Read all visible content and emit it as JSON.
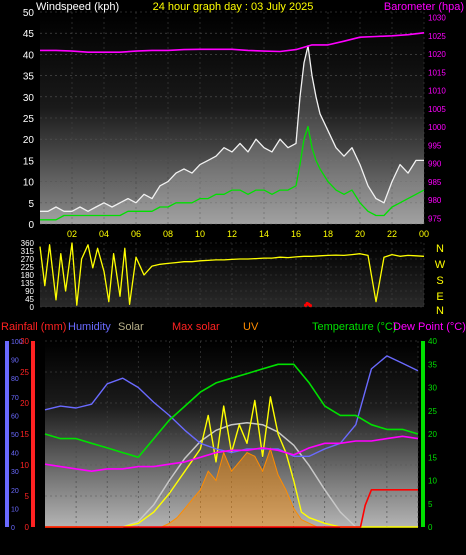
{
  "top": {
    "title_left": "Windspeed (kph)",
    "title_center": "24 hour graph day : 03 July 2025",
    "title_right": "Barometer (hpa)"
  },
  "middle": {
    "compass": [
      "N",
      "W",
      "S",
      "E",
      "N"
    ]
  },
  "bottom": {
    "legend": {
      "rainfall": "Rainfall (mm)",
      "humidity": "Humidity",
      "solar": "Solar",
      "max_solar": "Max solar",
      "uv": "UV",
      "temperature": "Temperature (°C)",
      "dew_point": "Dew Point (°C)"
    }
  },
  "colors": {
    "wind_gust": "#f2f2f2",
    "wind_avg": "#00e000",
    "barometer": "#ff00ff",
    "direction": "#ffff00",
    "rain": "#ff0000",
    "humidity": "#6a6aff",
    "solar": "#ffff00",
    "max_solar": "#c8c8c8",
    "uv": "#ff8c00",
    "temperature": "#00e000",
    "dew_point": "#ff00ff",
    "rain_axis": "#ff2222",
    "humidity_axis": "#6a6aff",
    "temperature_axis": "#00e000"
  },
  "chart_data": [
    {
      "type": "line",
      "name": "wind-and-barometer",
      "x_ticks": [
        "02",
        "04",
        "06",
        "08",
        "10",
        "12",
        "14",
        "16",
        "18",
        "20",
        "22",
        "00"
      ],
      "x_hours": [
        2,
        4,
        6,
        8,
        10,
        12,
        14,
        16,
        18,
        20,
        22,
        24
      ],
      "xlim": [
        0,
        24
      ],
      "y_left": {
        "label": "Windspeed (kph)",
        "ylim": [
          0,
          50
        ],
        "ticks": [
          0,
          5,
          10,
          15,
          20,
          25,
          30,
          35,
          40,
          45,
          50
        ]
      },
      "y_right": {
        "label": "Barometer (hpa)",
        "ylim": [
          973.5,
          1031.5
        ],
        "ticks": [
          975,
          980,
          985,
          990,
          995,
          1000,
          1005,
          1010,
          1015,
          1020,
          1025,
          1030
        ]
      },
      "series": [
        {
          "name": "Windspeed gust",
          "axis": "left",
          "x": [
            0,
            0.5,
            1,
            1.5,
            2,
            2.5,
            3,
            3.5,
            4,
            4.5,
            5,
            5.5,
            6,
            6.5,
            7,
            7.5,
            8,
            8.5,
            9,
            9.5,
            10,
            10.5,
            11,
            11.5,
            12,
            12.5,
            13,
            13.5,
            14,
            14.5,
            15,
            15.5,
            16,
            16.25,
            16.5,
            16.75,
            17,
            17.25,
            17.5,
            18,
            18.5,
            19,
            19.5,
            20,
            20.5,
            21,
            21.5,
            22,
            22.5,
            23,
            23.5,
            24
          ],
          "y": [
            3,
            3,
            4,
            3,
            3,
            4,
            3,
            4,
            5,
            4,
            5,
            6,
            5,
            7,
            6,
            9,
            10,
            12,
            13,
            12,
            14,
            15,
            16,
            18,
            17,
            19,
            17,
            20,
            18,
            17,
            20,
            18,
            19,
            30,
            38,
            42,
            35,
            30,
            26,
            22,
            18,
            16,
            18,
            14,
            9,
            6,
            5,
            10,
            14,
            12,
            15,
            15
          ]
        },
        {
          "name": "Windspeed average",
          "axis": "left",
          "x": [
            0,
            0.5,
            1,
            1.5,
            2,
            2.5,
            3,
            3.5,
            4,
            4.5,
            5,
            5.5,
            6,
            6.5,
            7,
            7.5,
            8,
            8.5,
            9,
            9.5,
            10,
            10.5,
            11,
            11.5,
            12,
            12.5,
            13,
            13.5,
            14,
            14.5,
            15,
            15.5,
            16,
            16.25,
            16.5,
            16.75,
            17,
            17.25,
            17.5,
            18,
            18.5,
            19,
            19.5,
            20,
            20.5,
            21,
            21.5,
            22,
            22.5,
            23,
            23.5,
            24
          ],
          "y": [
            1,
            1,
            1,
            2,
            2,
            2,
            2,
            2,
            2,
            2,
            2,
            3,
            3,
            3,
            3,
            4,
            4,
            5,
            5,
            5,
            6,
            6,
            7,
            7,
            8,
            8,
            7,
            8,
            8,
            7,
            8,
            8,
            9,
            14,
            20,
            23,
            18,
            15,
            13,
            10,
            8,
            7,
            8,
            5,
            3,
            2,
            2,
            4,
            5,
            6,
            7,
            8
          ]
        },
        {
          "name": "Barometer",
          "axis": "right",
          "x": [
            0,
            1,
            2,
            3,
            4,
            5,
            6,
            7,
            8,
            9,
            10,
            11,
            12,
            13,
            14,
            15,
            16,
            17,
            18,
            19,
            20,
            21,
            22,
            23,
            24
          ],
          "y": [
            1021,
            1021,
            1020.8,
            1020.5,
            1020.5,
            1020.5,
            1020.8,
            1021,
            1021,
            1021.2,
            1021.3,
            1021.3,
            1021.3,
            1021,
            1020.8,
            1020.7,
            1021.2,
            1022.5,
            1022.5,
            1023.5,
            1024.6,
            1024.8,
            1025,
            1025.3,
            1025.8
          ]
        }
      ]
    },
    {
      "type": "scatter",
      "name": "wind-direction",
      "x_ticks": [
        "02",
        "04",
        "06",
        "08",
        "10",
        "12",
        "14",
        "16",
        "18",
        "20",
        "22",
        "00"
      ],
      "x_hours": [
        2,
        4,
        6,
        8,
        10,
        12,
        14,
        16,
        18,
        20,
        22,
        24
      ],
      "xlim": [
        0,
        24
      ],
      "ylim": [
        0,
        360
      ],
      "y_ticks": [
        0,
        45,
        90,
        135,
        180,
        225,
        270,
        315,
        360
      ],
      "series": [
        {
          "name": "Wind direction",
          "x": [
            0,
            0.3,
            0.6,
            1,
            1.3,
            1.6,
            2,
            2.3,
            2.6,
            3,
            3.3,
            3.6,
            4,
            4.3,
            4.6,
            5,
            5.3,
            5.6,
            6,
            6.5,
            7,
            7.5,
            8,
            8.5,
            9,
            9.5,
            10,
            10.5,
            11,
            11.5,
            12,
            12.5,
            13,
            13.5,
            14,
            14.5,
            15,
            15.5,
            16,
            16.5,
            17,
            17.5,
            18,
            18.5,
            19,
            19.5,
            20,
            20.5,
            21,
            21.5,
            22,
            22.5,
            23,
            23.5,
            24
          ],
          "y": [
            340,
            120,
            350,
            40,
            300,
            90,
            360,
            10,
            270,
            350,
            220,
            330,
            200,
            30,
            300,
            60,
            330,
            15,
            280,
            180,
            230,
            240,
            245,
            250,
            255,
            255,
            260,
            262,
            265,
            265,
            268,
            270,
            270,
            272,
            275,
            275,
            280,
            278,
            282,
            285,
            285,
            288,
            290,
            292,
            290,
            295,
            300,
            290,
            30,
            280,
            295,
            285,
            290,
            288,
            285
          ]
        },
        {
          "name": "Rain (direction panel)",
          "x": [
            16.6,
            16.7,
            16.8,
            16.9
          ],
          "y": [
            10,
            20,
            15,
            8
          ]
        }
      ]
    },
    {
      "type": "line",
      "name": "temperature-rain-solar",
      "x_ticks": [
        "02",
        "04",
        "06",
        "08",
        "10",
        "12",
        "14",
        "16",
        "18",
        "20",
        "22",
        "00"
      ],
      "x_hours": [
        2,
        4,
        6,
        8,
        10,
        12,
        14,
        16,
        18,
        20,
        22,
        24
      ],
      "xlim": [
        0,
        24
      ],
      "y_rain": {
        "label": "Rainfall (mm)",
        "ylim": [
          0,
          30
        ],
        "ticks": [
          0,
          5,
          10,
          15,
          20,
          25,
          30
        ]
      },
      "y_humidity": {
        "label": "Humidity",
        "ylim": [
          0,
          100
        ],
        "ticks": [
          0,
          10,
          20,
          30,
          40,
          50,
          60,
          70,
          80,
          90,
          100
        ]
      },
      "y_temp": {
        "label": "Temperature (°C)",
        "ylim": [
          0,
          40
        ],
        "ticks": [
          0,
          5,
          10,
          15,
          20,
          25,
          30,
          35,
          40
        ]
      },
      "series": [
        {
          "name": "Humidity",
          "axis": "humidity",
          "x": [
            0,
            1,
            2,
            3,
            4,
            5,
            6,
            7,
            8,
            9,
            10,
            11,
            12,
            13,
            14,
            15,
            16,
            17,
            18,
            19,
            20,
            21,
            22,
            23,
            24
          ],
          "y": [
            63,
            65,
            64,
            66,
            77,
            80,
            75,
            67,
            60,
            52,
            45,
            42,
            40,
            42,
            42,
            42,
            38,
            38,
            42,
            45,
            55,
            85,
            92,
            88,
            84
          ]
        },
        {
          "name": "Temperature",
          "axis": "temp",
          "x": [
            0,
            1,
            2,
            3,
            4,
            5,
            6,
            7,
            8,
            9,
            10,
            11,
            12,
            13,
            14,
            15,
            16,
            17,
            18,
            19,
            20,
            21,
            22,
            23,
            24
          ],
          "y": [
            20,
            19,
            19,
            18,
            17,
            16,
            15,
            19,
            23,
            26,
            29,
            31,
            32,
            33,
            34,
            35,
            35,
            31,
            26,
            24,
            24,
            22,
            21,
            21,
            20
          ]
        },
        {
          "name": "Dew Point",
          "axis": "temp",
          "x": [
            0,
            1,
            2,
            3,
            4,
            5,
            6,
            7,
            8,
            9,
            10,
            11,
            12,
            13,
            14,
            15,
            16,
            17,
            18,
            19,
            20,
            21,
            22,
            23,
            24
          ],
          "y": [
            13.5,
            13,
            12.5,
            12,
            12.5,
            12.5,
            13,
            13,
            13.5,
            14,
            15,
            16,
            16.5,
            16.5,
            17,
            16.5,
            15.5,
            17,
            18,
            18,
            18.5,
            18.5,
            19,
            19.5,
            19
          ]
        },
        {
          "name": "Max solar",
          "axis": "humidity",
          "x": [
            5,
            6,
            7,
            8,
            9,
            10,
            11,
            12,
            13,
            14,
            15,
            16,
            17,
            18,
            19,
            20
          ],
          "y": [
            0,
            3,
            12,
            25,
            37,
            46,
            52,
            55,
            56,
            55,
            51,
            44,
            33,
            20,
            8,
            0
          ]
        },
        {
          "name": "Solar",
          "axis": "humidity",
          "x": [
            0,
            5,
            6,
            7,
            8,
            9,
            10,
            10.5,
            11,
            11.5,
            12,
            12.5,
            13,
            13.5,
            14,
            14.5,
            15,
            15.5,
            16,
            16.5,
            17,
            18,
            19,
            20,
            24
          ],
          "y": [
            0,
            0,
            2,
            8,
            18,
            30,
            42,
            60,
            35,
            65,
            40,
            55,
            45,
            68,
            38,
            70,
            50,
            40,
            25,
            8,
            5,
            2,
            0,
            0,
            0
          ]
        },
        {
          "name": "UV",
          "axis": "humidity",
          "x": [
            0,
            7.5,
            8,
            8.5,
            9,
            9.5,
            10,
            10.5,
            11,
            11.5,
            12,
            12.5,
            13,
            13.5,
            14,
            14.5,
            15,
            15.5,
            16,
            16.5,
            17,
            17.5,
            24
          ],
          "y": [
            0,
            0,
            2,
            5,
            10,
            15,
            20,
            30,
            25,
            40,
            30,
            35,
            40,
            38,
            30,
            42,
            28,
            20,
            10,
            4,
            2,
            0,
            0
          ]
        },
        {
          "name": "Rainfall",
          "axis": "rain",
          "x": [
            0,
            20.3,
            20.6,
            21,
            24
          ],
          "y": [
            0,
            0,
            3.5,
            6,
            6
          ]
        }
      ]
    }
  ]
}
